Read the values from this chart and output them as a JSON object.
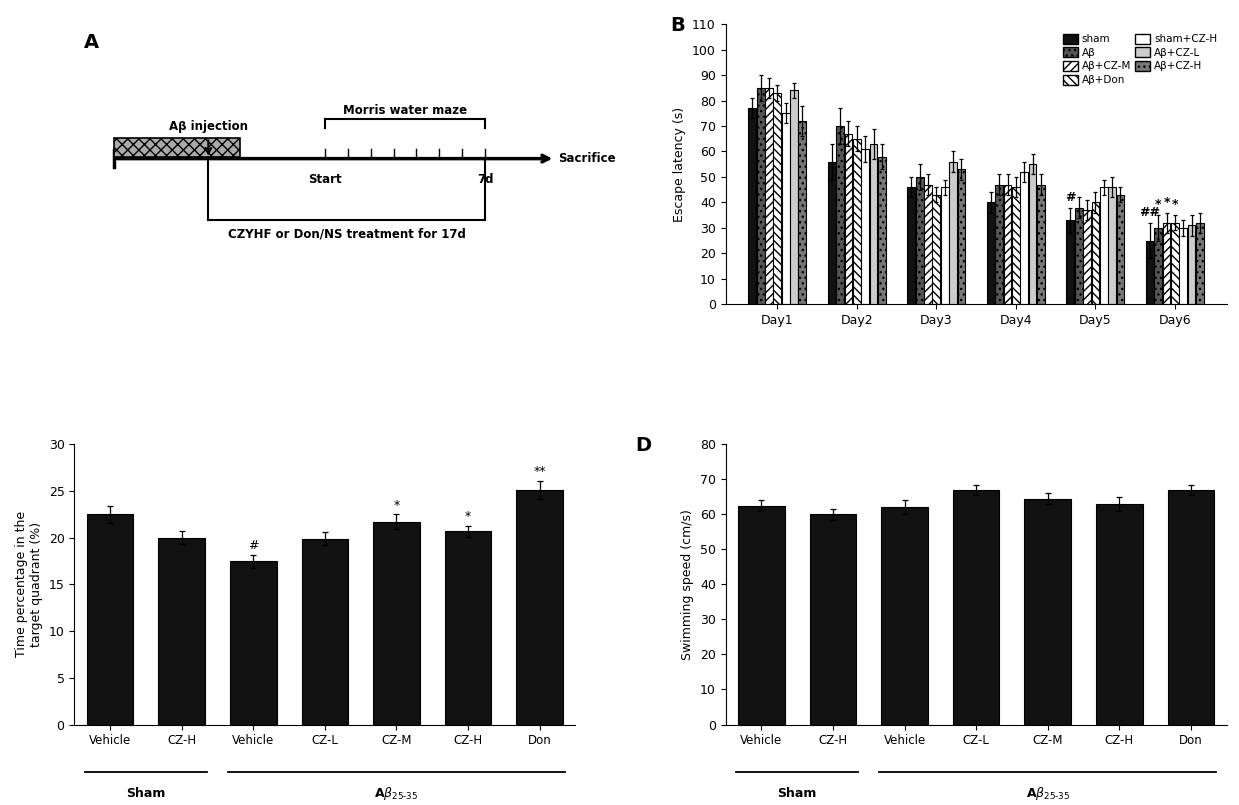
{
  "panel_B": {
    "days": [
      "Day1",
      "Day2",
      "Day3",
      "Day4",
      "Day5",
      "Day6"
    ],
    "values_by_group": [
      [
        77,
        56,
        46,
        40,
        33,
        25
      ],
      [
        85,
        70,
        50,
        47,
        38,
        30
      ],
      [
        85,
        67,
        47,
        47,
        37,
        32
      ],
      [
        83,
        65,
        43,
        46,
        40,
        32
      ],
      [
        75,
        61,
        46,
        52,
        46,
        30
      ],
      [
        84,
        63,
        56,
        55,
        46,
        31
      ],
      [
        72,
        58,
        53,
        47,
        43,
        32
      ]
    ],
    "errors_by_group": [
      [
        4,
        7,
        4,
        4,
        5,
        7
      ],
      [
        5,
        7,
        5,
        4,
        4,
        5
      ],
      [
        4,
        5,
        4,
        4,
        4,
        4
      ],
      [
        3,
        5,
        3,
        4,
        4,
        3
      ],
      [
        4,
        5,
        3,
        4,
        3,
        3
      ],
      [
        3,
        6,
        4,
        4,
        4,
        4
      ],
      [
        6,
        5,
        4,
        4,
        3,
        4
      ]
    ],
    "ylabel": "Escape latency (s)",
    "ylim": [
      0,
      110
    ],
    "yticks": [
      0,
      10,
      20,
      30,
      40,
      50,
      60,
      70,
      80,
      90,
      100,
      110
    ],
    "sig_day5_group0": "#",
    "sig_day6_group0": "##",
    "sig_day6_others": [
      "*",
      "*",
      "*"
    ]
  },
  "panel_C": {
    "categories": [
      "Vehicle",
      "CZ-H",
      "Vehicle",
      "CZ-L",
      "CZ-M",
      "CZ-H",
      "Don"
    ],
    "values": [
      22.5,
      20.0,
      17.5,
      19.9,
      21.7,
      20.7,
      25.1
    ],
    "errors": [
      0.9,
      0.7,
      0.7,
      0.7,
      0.8,
      0.6,
      1.0
    ],
    "ylabel": "Time percentage in the\ntarget quadrant (%)",
    "ylim": [
      0,
      30
    ],
    "yticks": [
      0,
      5,
      10,
      15,
      20,
      25,
      30
    ],
    "significance": [
      "none",
      "none",
      "#",
      "none",
      "*",
      "*",
      "**"
    ]
  },
  "panel_D": {
    "categories": [
      "Vehicle",
      "CZ-H",
      "Vehicle",
      "CZ-L",
      "CZ-M",
      "CZ-H",
      "Don"
    ],
    "values": [
      62.5,
      60.0,
      62.0,
      67.0,
      64.5,
      63.0,
      67.0
    ],
    "errors": [
      1.5,
      1.5,
      2.0,
      1.5,
      1.5,
      2.0,
      1.5
    ],
    "ylabel": "Swimming speed (cm/s)",
    "ylim": [
      0,
      80
    ],
    "yticks": [
      0,
      10,
      20,
      30,
      40,
      50,
      60,
      70,
      80
    ]
  }
}
